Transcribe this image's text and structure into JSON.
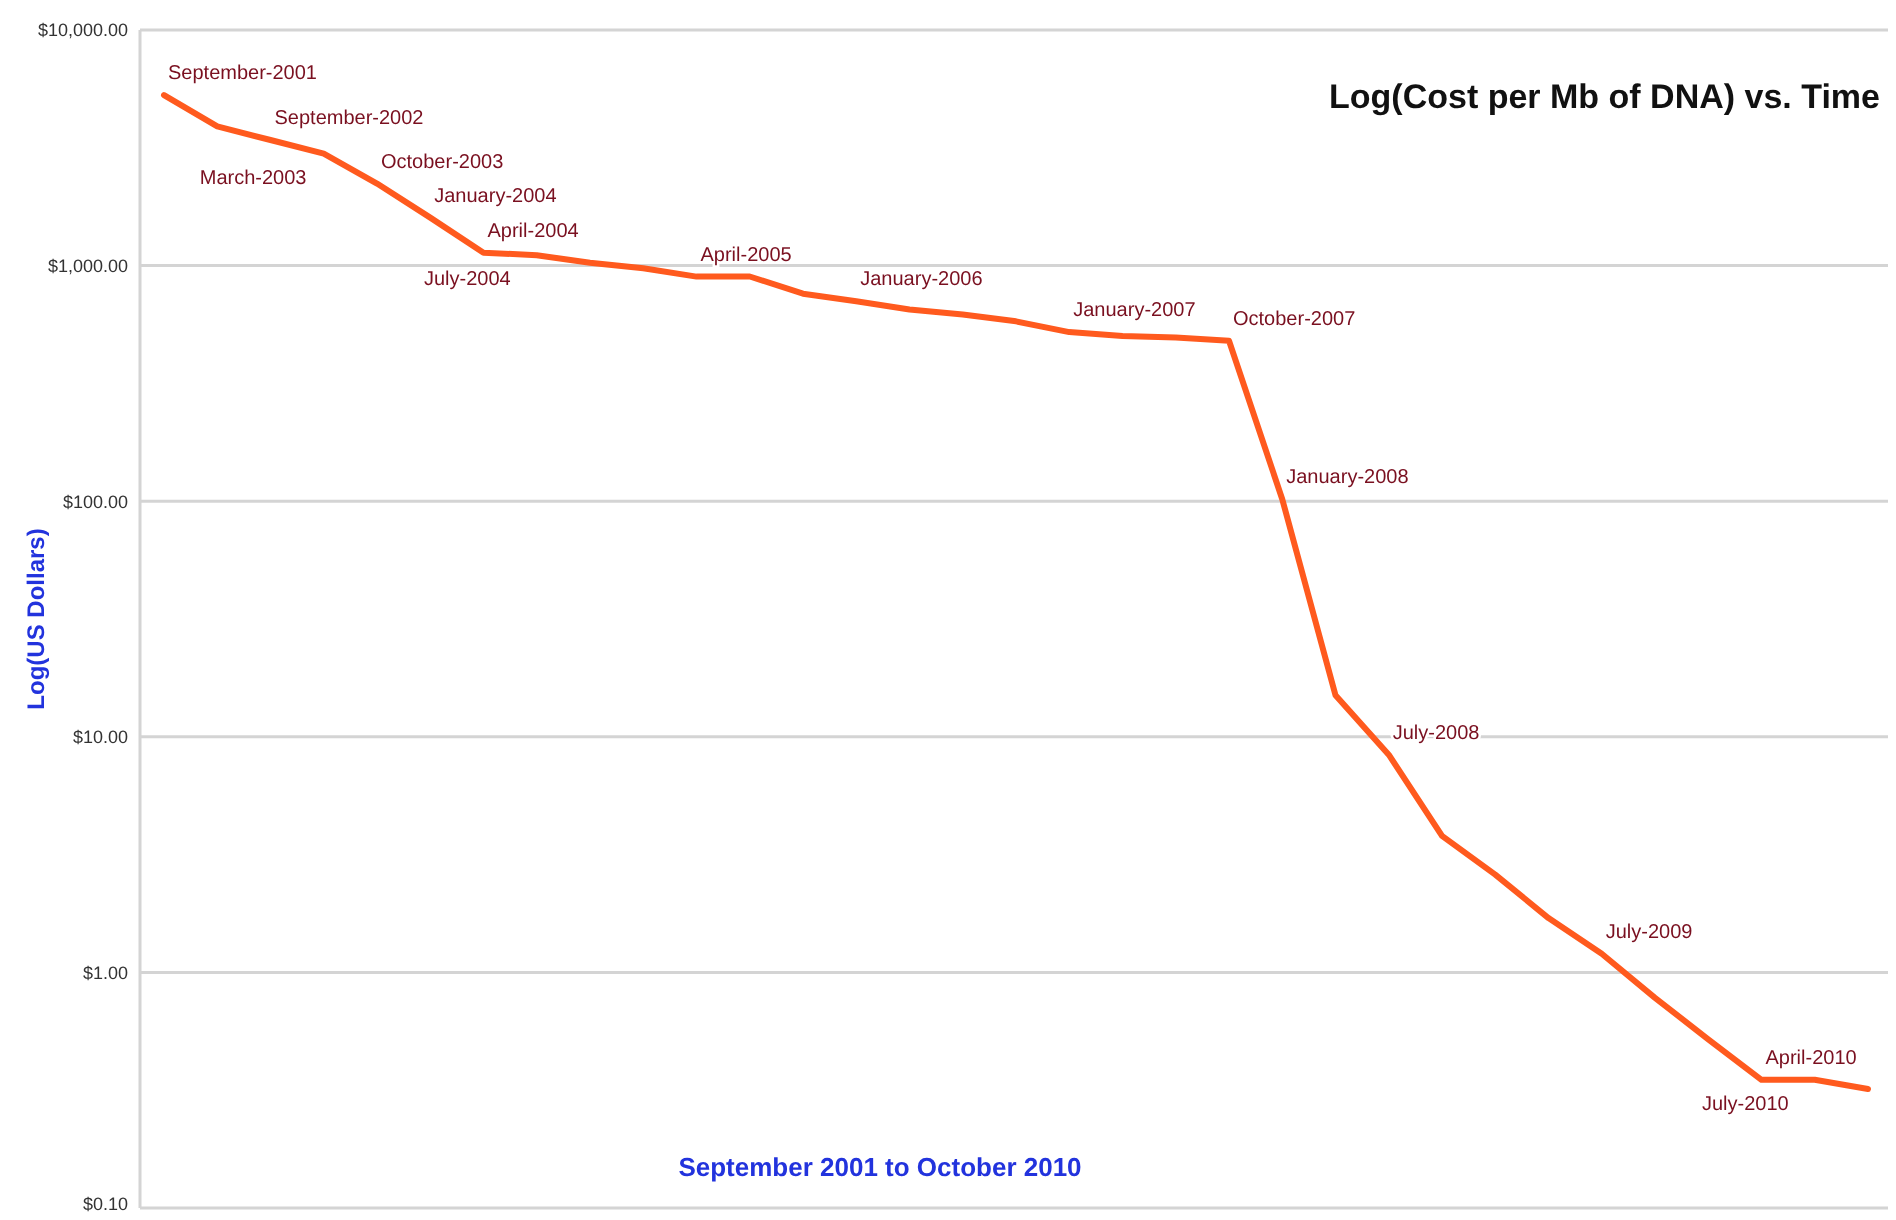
{
  "chart_data": {
    "type": "line",
    "title": "Log(Cost per Mb of DNA) vs. Time",
    "xlabel": "September 2001 to October 2010",
    "ylabel": "Log(US Dollars)",
    "categories": [
      null,
      null,
      null,
      null,
      null,
      null,
      null,
      null,
      null,
      null,
      null,
      null,
      null,
      null,
      null,
      null,
      null,
      null,
      null,
      null,
      null,
      null,
      null,
      null,
      null,
      null,
      null,
      null,
      null,
      null,
      null,
      null,
      null
    ],
    "series": [
      {
        "color": "#ff5a1e",
        "values": [
          5292,
          3898,
          3413,
          2986,
          2230,
          1598,
          1135,
          1107,
          1028,
          974,
          898,
          899,
          760,
          706,
          651,
          620,
          580,
          522,
          502,
          495,
          480,
          102,
          15,
          8.4,
          3.8,
          2.6,
          1.7,
          1.2,
          0.78,
          0.52,
          0.35,
          0.35,
          0.32
        ],
        "value_labels": [
          "September-2001",
          null,
          "September-2002",
          "March-2003",
          "October-2003",
          "January-2004",
          "April-2004",
          "July-2004",
          null,
          null,
          "April-2005",
          null,
          null,
          "January-2006",
          null,
          null,
          null,
          "January-2007",
          null,
          null,
          "October-2007",
          "January-2008",
          null,
          "July-2008",
          null,
          null,
          null,
          "July-2009",
          null,
          null,
          "April-2010",
          "July-2010",
          null
        ]
      }
    ],
    "log": "y",
    "ylim": [
      0.1,
      10000
    ],
    "yticks": [
      {
        "value": 0.1,
        "label": "$0.10"
      },
      {
        "value": 1,
        "label": "$1.00"
      },
      {
        "value": 10,
        "label": "$10.00"
      },
      {
        "value": 100,
        "label": "$100.00"
      },
      {
        "value": 1000,
        "label": "$1,000.00"
      },
      {
        "value": 10000,
        "label": "$10,000.00"
      }
    ],
    "grid": "y",
    "tick_labels": "y",
    "line_style": "solid",
    "marker": "none"
  }
}
